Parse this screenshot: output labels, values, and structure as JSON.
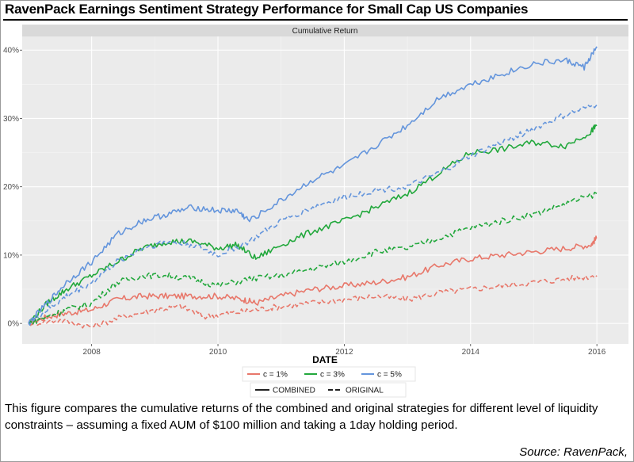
{
  "title": "RavenPack Earnings Sentiment Strategy Performance for Small Cap US Companies",
  "caption": "This figure compares the cumulative returns of the combined and original strategies for different level of liquidity constraints – assuming a fixed AUM of $100 million and taking a 1day holding period.",
  "source": "Source: RavenPack,",
  "chart_data": {
    "type": "line",
    "panel_title": "Cumulative Return",
    "xlabel": "DATE",
    "ylabel": "",
    "xlim": [
      2006.9,
      2016.5
    ],
    "ylim": [
      -3,
      42
    ],
    "x_ticks": [
      2008,
      2010,
      2012,
      2014,
      2016
    ],
    "y_ticks": [
      0,
      10,
      20,
      30,
      40
    ],
    "y_tick_labels": [
      "0%",
      "10%",
      "20%",
      "30%",
      "40%"
    ],
    "grid": true,
    "legend": {
      "placement": "bottom",
      "colour_entries": [
        {
          "label": "c = 1%",
          "color": "#E8776A"
        },
        {
          "label": "c = 3%",
          "color": "#22A83C"
        },
        {
          "label": "c = 5%",
          "color": "#6495DC"
        }
      ],
      "linetype_entries": [
        {
          "label": "COMBINED",
          "dash": "solid"
        },
        {
          "label": "ORIGINAL",
          "dash": "dashed"
        }
      ]
    },
    "series": [
      {
        "name": "c = 1%",
        "style": "COMBINED",
        "color": "#E8776A",
        "dash": "solid",
        "x": [
          2007.0,
          2007.3,
          2007.6,
          2008.0,
          2008.4,
          2008.8,
          2009.2,
          2009.6,
          2010.0,
          2010.4,
          2010.6,
          2011.0,
          2011.5,
          2012.0,
          2012.5,
          2013.0,
          2013.5,
          2014.0,
          2014.5,
          2015.0,
          2015.5,
          2015.9,
          2016.0
        ],
        "y": [
          0,
          1.0,
          1.5,
          2.0,
          3.5,
          4.0,
          4.0,
          4.0,
          4.0,
          3.5,
          3.0,
          4.0,
          5.0,
          5.5,
          6.0,
          6.8,
          8.5,
          9.5,
          10.0,
          10.5,
          11.0,
          11.5,
          12.5
        ]
      },
      {
        "name": "c = 1%",
        "style": "ORIGINAL",
        "color": "#E8776A",
        "dash": "dashed",
        "x": [
          2007.0,
          2007.5,
          2008.0,
          2008.5,
          2009.0,
          2009.4,
          2009.8,
          2010.2,
          2010.6,
          2011.0,
          2011.5,
          2012.0,
          2012.5,
          2013.0,
          2013.5,
          2014.0,
          2014.5,
          2015.0,
          2015.5,
          2016.0
        ],
        "y": [
          0,
          0.5,
          -0.5,
          1.0,
          2.0,
          2.5,
          1.0,
          1.5,
          2.0,
          2.5,
          3.0,
          3.5,
          4.0,
          3.5,
          4.5,
          5.0,
          5.5,
          6.0,
          6.5,
          7.0
        ]
      },
      {
        "name": "c = 3%",
        "style": "COMBINED",
        "color": "#22A83C",
        "dash": "solid",
        "x": [
          2007.0,
          2007.3,
          2007.6,
          2008.0,
          2008.4,
          2008.8,
          2009.2,
          2009.6,
          2010.0,
          2010.3,
          2010.6,
          2011.0,
          2011.5,
          2012.0,
          2012.5,
          2013.0,
          2013.5,
          2014.0,
          2014.5,
          2015.0,
          2015.5,
          2015.9,
          2016.0
        ],
        "y": [
          0,
          3.0,
          5.0,
          7.0,
          9.0,
          11.0,
          12.0,
          12.0,
          11.0,
          11.5,
          9.5,
          11.5,
          13.5,
          15.0,
          17.0,
          19.0,
          22.0,
          25.0,
          25.5,
          26.5,
          26.0,
          28.0,
          29.0
        ]
      },
      {
        "name": "c = 3%",
        "style": "ORIGINAL",
        "color": "#22A83C",
        "dash": "dashed",
        "x": [
          2007.0,
          2007.3,
          2007.6,
          2008.0,
          2008.4,
          2008.8,
          2009.2,
          2009.6,
          2010.0,
          2010.5,
          2011.0,
          2011.5,
          2012.0,
          2012.5,
          2013.0,
          2013.5,
          2014.0,
          2014.5,
          2015.0,
          2015.5,
          2016.0
        ],
        "y": [
          0,
          1.0,
          2.0,
          3.0,
          6.0,
          7.0,
          7.0,
          6.5,
          5.5,
          6.5,
          7.0,
          8.0,
          9.0,
          10.5,
          11.0,
          12.5,
          14.0,
          15.0,
          16.0,
          17.5,
          19.0
        ]
      },
      {
        "name": "c = 5%",
        "style": "COMBINED",
        "color": "#6495DC",
        "dash": "solid",
        "x": [
          2007.0,
          2007.3,
          2007.6,
          2008.0,
          2008.4,
          2008.8,
          2009.2,
          2009.6,
          2010.0,
          2010.3,
          2010.5,
          2011.0,
          2011.5,
          2012.0,
          2012.5,
          2013.0,
          2013.5,
          2014.0,
          2014.5,
          2015.0,
          2015.5,
          2015.8,
          2016.0
        ],
        "y": [
          0,
          3.0,
          6.0,
          9.0,
          13.0,
          15.0,
          16.0,
          17.0,
          16.5,
          16.5,
          15.0,
          18.0,
          21.0,
          23.0,
          26.0,
          29.0,
          33.0,
          35.0,
          36.5,
          38.0,
          38.5,
          37.5,
          40.5
        ]
      },
      {
        "name": "c = 5%",
        "style": "ORIGINAL",
        "color": "#6495DC",
        "dash": "dashed",
        "x": [
          2007.0,
          2007.3,
          2007.6,
          2008.0,
          2008.4,
          2008.8,
          2009.2,
          2009.6,
          2010.0,
          2010.5,
          2011.0,
          2011.5,
          2012.0,
          2012.5,
          2013.0,
          2013.5,
          2014.0,
          2014.5,
          2015.0,
          2015.5,
          2016.0
        ],
        "y": [
          0,
          2.0,
          4.0,
          6.0,
          9.0,
          11.0,
          12.0,
          11.5,
          10.0,
          12.0,
          15.0,
          17.0,
          18.5,
          19.5,
          20.0,
          22.0,
          24.5,
          26.5,
          28.5,
          30.5,
          32.0
        ]
      }
    ]
  }
}
